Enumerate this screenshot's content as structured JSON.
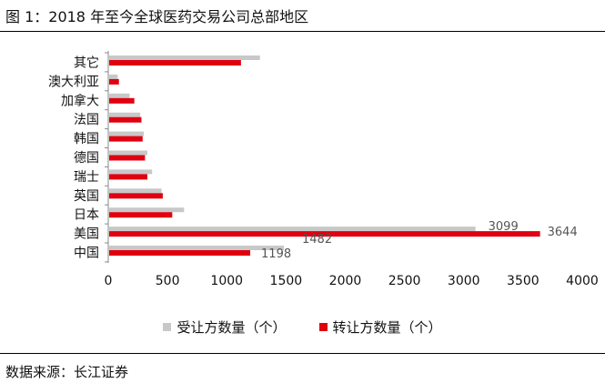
{
  "title": "图 1：2018 年至今全球医药交易公司总部地区",
  "source": "数据来源：长江证券",
  "chart_data": {
    "type": "bar",
    "orientation": "horizontal",
    "categories": [
      "其它",
      "澳大利亚",
      "加拿大",
      "法国",
      "韩国",
      "德国",
      "瑞士",
      "英国",
      "日本",
      "美国",
      "中国"
    ],
    "series": [
      {
        "name": "受让方数量（个）",
        "color": "#c8c8c8",
        "values": [
          1280,
          80,
          180,
          270,
          300,
          330,
          370,
          450,
          640,
          3099,
          1482
        ]
      },
      {
        "name": "转让方数量（个）",
        "color": "#e00010",
        "values": [
          1120,
          90,
          220,
          280,
          290,
          310,
          330,
          460,
          540,
          3644,
          1198
        ]
      }
    ],
    "data_labels": [
      {
        "category": "美国",
        "series": 0,
        "text": "3099"
      },
      {
        "category": "美国",
        "series": 1,
        "text": "3644"
      },
      {
        "category": "中国",
        "series": 0,
        "text": "1482"
      },
      {
        "category": "中国",
        "series": 1,
        "text": "1198"
      }
    ],
    "xlim": [
      0,
      4000
    ],
    "xticks": [
      "0",
      "500",
      "1000",
      "1500",
      "2000",
      "2500",
      "3000",
      "3500",
      "4000"
    ],
    "grid": false,
    "legend_position": "bottom"
  }
}
